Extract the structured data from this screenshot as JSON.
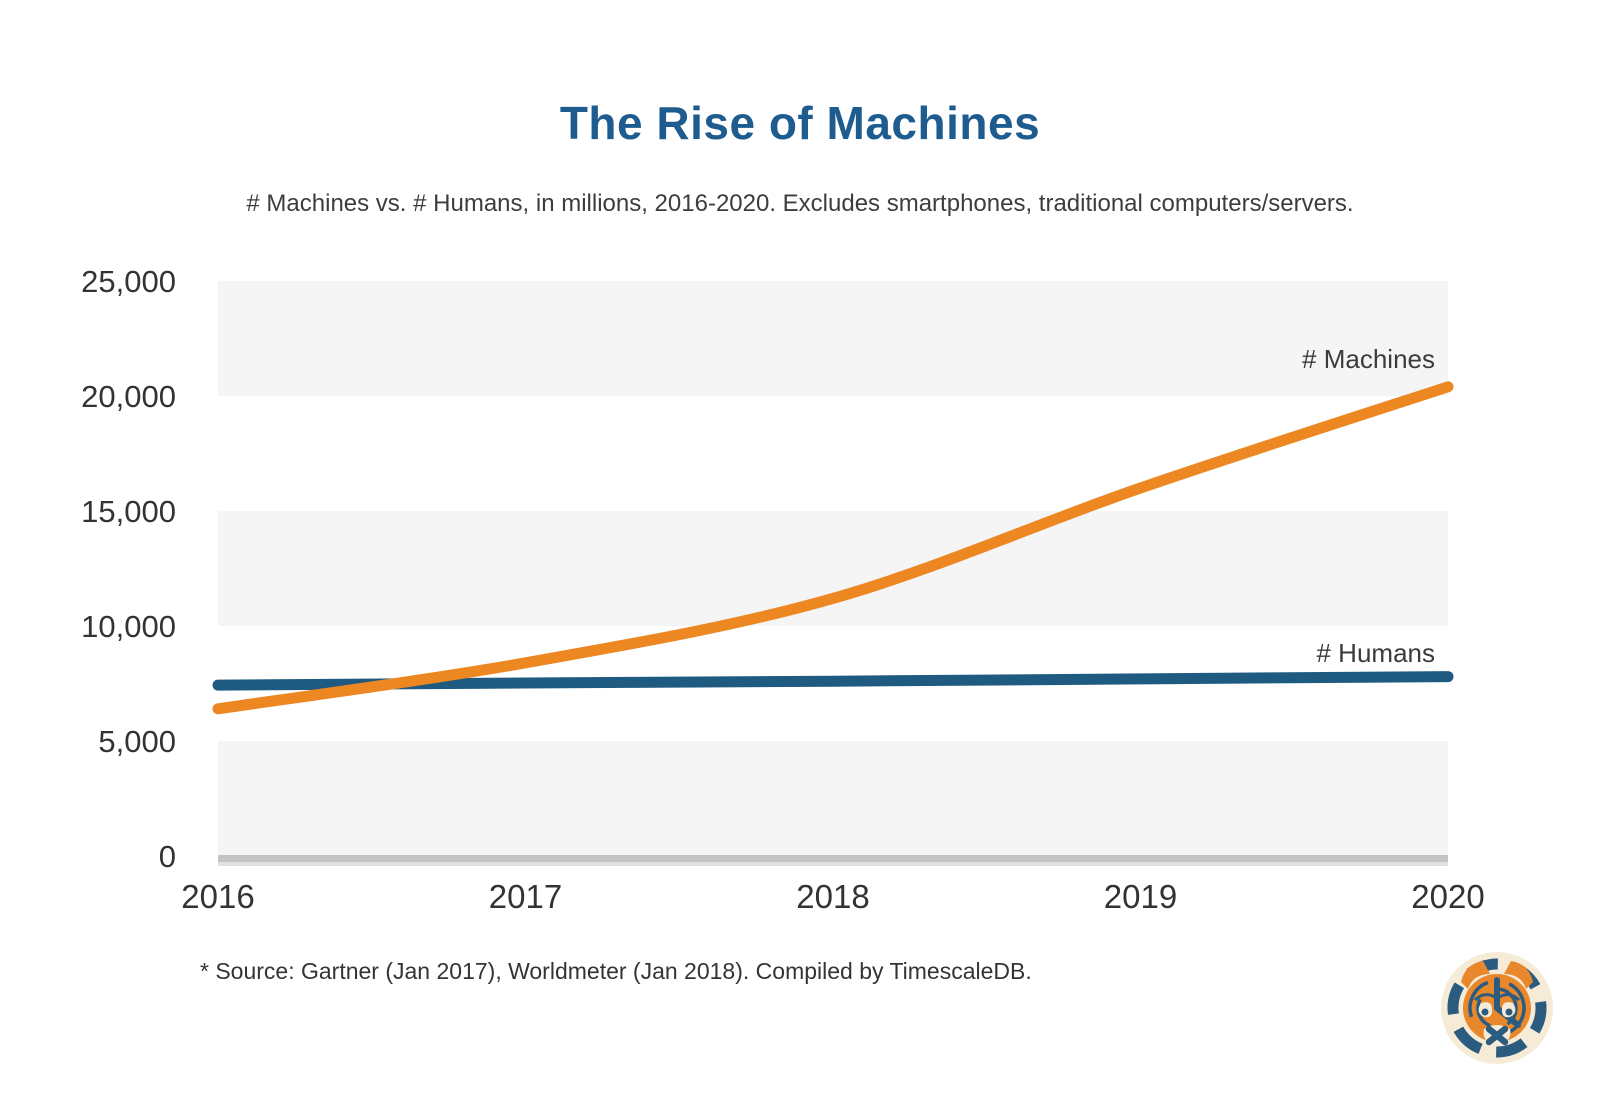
{
  "page": {
    "title": "The Rise of Machines",
    "subtitle": "# Machines vs. # Humans, in millions, 2016-2020. Excludes smartphones, traditional computers/servers.",
    "source_note": "* Source: Gartner (Jan 2017), Worldmeter (Jan 2018). Compiled by TimescaleDB.",
    "logo_name": "timescaledb-tiger-clock-logo"
  },
  "colors": {
    "title_blue": "#1E5C8F",
    "text_dark": "#3A3A3A",
    "machines_orange": "#ED8722",
    "humans_blue": "#1F5B80",
    "band_gray": "#F5F5F5",
    "axis_bar": "#C3C3C3",
    "axis_bar_light": "#E0E0E0",
    "logo_cream": "#F6EBD7",
    "logo_orange": "#E8872B",
    "logo_blue": "#2B5C7F"
  },
  "chart_data": {
    "type": "line",
    "title": "The Rise of Machines",
    "subtitle": "# Machines vs. # Humans, in millions, 2016-2020. Excludes smartphones, traditional computers/servers.",
    "xlabel": "",
    "ylabel": "",
    "x": [
      2016,
      2017,
      2018,
      2019,
      2020
    ],
    "xtick_labels": [
      "2016",
      "2017",
      "2018",
      "2019",
      "2020"
    ],
    "ylim": [
      0,
      25000
    ],
    "yticks": [
      0,
      5000,
      10000,
      15000,
      20000,
      25000
    ],
    "ytick_labels": [
      "0",
      "5,000",
      "10,000",
      "15,000",
      "20,000",
      "25,000"
    ],
    "grid": "alternating horizontal gray bands (20000-25000, 10000-15000, 0-5000)",
    "band_ranges": [
      [
        20000,
        25000
      ],
      [
        10000,
        15000
      ],
      [
        0,
        5000
      ]
    ],
    "legend_position": "end-of-line annotations at right side",
    "series": [
      {
        "name": "# Machines",
        "color": "#ED8722",
        "values": [
          6400,
          8400,
          11200,
          16000,
          20400
        ],
        "note": "values in millions; smooth rising curve"
      },
      {
        "name": "# Humans",
        "color": "#1F5B80",
        "values": [
          7430,
          7520,
          7600,
          7700,
          7800
        ],
        "note": "values in millions; nearly flat, slightly rising line"
      }
    ]
  }
}
